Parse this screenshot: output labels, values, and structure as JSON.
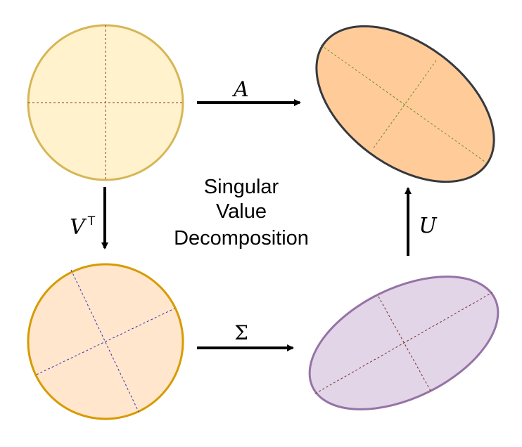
{
  "center_title": {
    "line1": "Singular",
    "line2": "Value",
    "line3": "Decomposition"
  },
  "labels": {
    "a": "A",
    "v": "V",
    "v_superscript": "T",
    "sigma": "Σ",
    "u": "U"
  },
  "colors": {
    "circle_top_fill": "#fff2cc",
    "circle_top_stroke": "#d6b656",
    "circle_top_axes": "#9b3333",
    "circle_bottom_fill": "#ffe6cc",
    "circle_bottom_stroke": "#d79b00",
    "circle_bottom_axes": "#3333bb",
    "ellipse_top_fill": "#ffcc99",
    "ellipse_top_stroke": "#36393d",
    "ellipse_top_axes": "#6b8e23",
    "ellipse_bottom_fill": "#e1d5e7",
    "ellipse_bottom_stroke": "#9673a6",
    "ellipse_bottom_axes": "#7a2a2a",
    "arrows": "#000000"
  }
}
